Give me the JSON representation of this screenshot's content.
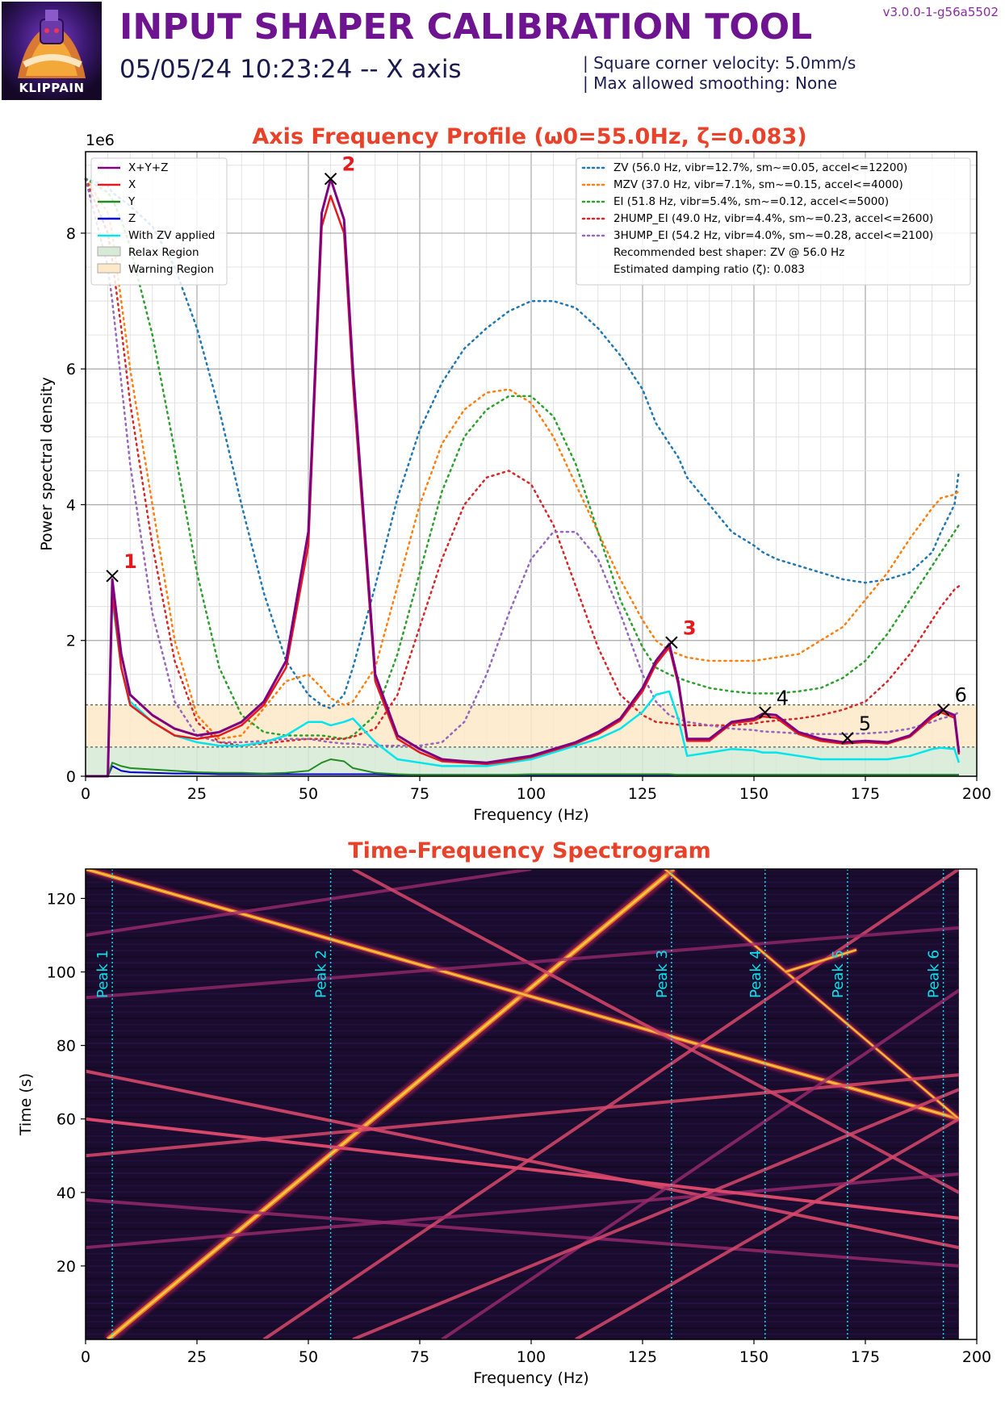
{
  "header": {
    "logo_text": "KLIPPAIN",
    "title": "INPUT SHAPER CALIBRATION TOOL",
    "subtitle": "05/05/24 10:23:24 -- X axis",
    "info_line1": "| Square corner velocity: 5.0mm/s",
    "info_line2": "| Max allowed smoothing: None",
    "version": "v3.0.0-1-g56a5502"
  },
  "colors": {
    "title": "#6f1490",
    "chart_title": "#e8432a",
    "sum": "#800080",
    "x": "#e41a1c",
    "y": "#228b22",
    "z": "#0000cd",
    "zv_applied": "#00e5ee",
    "relax": "#d6ead5",
    "warning": "#fde9c8"
  },
  "chart_data": [
    {
      "type": "line",
      "title": "Axis Frequency Profile (ω0=55.0Hz, ζ=0.083)",
      "xlabel": "Frequency (Hz)",
      "ylabel": "Power spectral density",
      "y_multiplier": "1e6",
      "xlim": [
        0,
        200
      ],
      "ylim": [
        0,
        9.2
      ],
      "xticks": [
        "0",
        "25",
        "50",
        "75",
        "100",
        "125",
        "150",
        "175",
        "200"
      ],
      "yticks": [
        "0",
        "2",
        "4",
        "6",
        "8"
      ],
      "grid": true,
      "x": [
        0,
        5,
        6,
        8,
        10,
        15,
        20,
        25,
        30,
        35,
        40,
        45,
        50,
        53,
        55,
        58,
        60,
        65,
        70,
        75,
        80,
        85,
        90,
        95,
        100,
        105,
        110,
        115,
        120,
        125,
        128,
        131,
        133,
        135,
        140,
        145,
        150,
        152,
        155,
        160,
        165,
        170,
        175,
        180,
        185,
        190,
        192,
        195,
        196
      ],
      "series": [
        {
          "name": "X+Y+Z",
          "color": "#800080",
          "style": "solid",
          "width": 3,
          "values": [
            0,
            0,
            2.9,
            1.8,
            1.2,
            0.9,
            0.7,
            0.6,
            0.65,
            0.8,
            1.1,
            1.7,
            3.6,
            8.3,
            8.8,
            8.2,
            6.0,
            1.5,
            0.6,
            0.4,
            0.25,
            0.22,
            0.2,
            0.25,
            0.3,
            0.4,
            0.5,
            0.65,
            0.85,
            1.3,
            1.7,
            1.95,
            1.4,
            0.55,
            0.55,
            0.8,
            0.85,
            0.92,
            0.9,
            0.65,
            0.55,
            0.5,
            0.52,
            0.5,
            0.6,
            0.9,
            0.98,
            0.9,
            0.35
          ]
        },
        {
          "name": "X",
          "color": "#e41a1c",
          "style": "solid",
          "width": 2.5,
          "values": [
            0,
            0,
            2.7,
            1.6,
            1.05,
            0.8,
            0.6,
            0.55,
            0.6,
            0.75,
            1.05,
            1.6,
            3.4,
            8.1,
            8.55,
            8.0,
            5.8,
            1.4,
            0.55,
            0.35,
            0.22,
            0.2,
            0.18,
            0.22,
            0.28,
            0.38,
            0.48,
            0.62,
            0.82,
            1.25,
            1.65,
            1.9,
            1.35,
            0.52,
            0.52,
            0.78,
            0.82,
            0.88,
            0.86,
            0.62,
            0.52,
            0.48,
            0.5,
            0.48,
            0.58,
            0.86,
            0.94,
            0.86,
            0.32
          ]
        },
        {
          "name": "Y",
          "color": "#228b22",
          "style": "solid",
          "width": 2,
          "values": [
            0,
            0,
            0.2,
            0.15,
            0.12,
            0.1,
            0.08,
            0.06,
            0.05,
            0.05,
            0.04,
            0.05,
            0.08,
            0.2,
            0.25,
            0.22,
            0.12,
            0.05,
            0.03,
            0.02,
            0.02,
            0.02,
            0.02,
            0.02,
            0.03,
            0.03,
            0.03,
            0.03,
            0.03,
            0.03,
            0.03,
            0.03,
            0.02,
            0.02,
            0.02,
            0.02,
            0.02,
            0.02,
            0.02,
            0.02,
            0.02,
            0.02,
            0.02,
            0.02,
            0.02,
            0.02,
            0.02,
            0.02,
            0.02
          ]
        },
        {
          "name": "Z",
          "color": "#0000cd",
          "style": "solid",
          "width": 2,
          "values": [
            0,
            0,
            0.15,
            0.08,
            0.06,
            0.05,
            0.04,
            0.04,
            0.03,
            0.03,
            0.03,
            0.03,
            0.03,
            0.03,
            0.03,
            0.03,
            0.03,
            0.03,
            0.02,
            0.02,
            0.02,
            0.02,
            0.02,
            0.02,
            0.02,
            0.02,
            0.02,
            0.02,
            0.02,
            0.02,
            0.02,
            0.02,
            0.02,
            0.02,
            0.02,
            0.02,
            0.02,
            0.02,
            0.02,
            0.02,
            0.02,
            0.02,
            0.02,
            0.02,
            0.02,
            0.02,
            0.02,
            0.02,
            0.02
          ]
        },
        {
          "name": "With ZV applied",
          "color": "#00e5ee",
          "style": "solid",
          "width": 2.5,
          "values": [
            0,
            0,
            2.6,
            1.6,
            1.1,
            0.8,
            0.6,
            0.5,
            0.45,
            0.45,
            0.5,
            0.6,
            0.8,
            0.8,
            0.75,
            0.8,
            0.85,
            0.5,
            0.25,
            0.2,
            0.15,
            0.15,
            0.15,
            0.2,
            0.25,
            0.35,
            0.45,
            0.55,
            0.7,
            0.95,
            1.2,
            1.25,
            0.85,
            0.3,
            0.35,
            0.4,
            0.38,
            0.35,
            0.35,
            0.3,
            0.25,
            0.25,
            0.25,
            0.25,
            0.3,
            0.4,
            0.42,
            0.4,
            0.2
          ]
        },
        {
          "name": "ZV (56.0 Hz, vibr=12.7%, sm~=0.05, accel<=12200)",
          "color": "#1f77b4",
          "style": "dotted",
          "width": 2.5,
          "values": [
            8.8,
            8.7,
            8.6,
            8.5,
            8.4,
            8.1,
            7.5,
            6.6,
            5.4,
            4.0,
            2.7,
            1.7,
            1.2,
            1.05,
            1.0,
            1.2,
            1.6,
            2.8,
            4.1,
            5.1,
            5.8,
            6.3,
            6.6,
            6.85,
            7.0,
            7.0,
            6.9,
            6.6,
            6.2,
            5.7,
            5.2,
            4.9,
            4.7,
            4.4,
            4.0,
            3.6,
            3.4,
            3.3,
            3.2,
            3.1,
            3.0,
            2.9,
            2.85,
            2.9,
            3.0,
            3.3,
            3.6,
            4.0,
            4.5
          ]
        },
        {
          "name": "MZV (37.0 Hz, vibr=7.1%, sm~=0.15, accel<=4000)",
          "color": "#ff7f0e",
          "style": "dotted",
          "width": 2.5,
          "values": [
            8.8,
            8.3,
            8.0,
            7.0,
            6.0,
            4.0,
            2.0,
            0.9,
            0.55,
            0.6,
            1.0,
            1.4,
            1.5,
            1.3,
            1.15,
            1.05,
            1.1,
            1.6,
            2.8,
            4.0,
            4.9,
            5.4,
            5.65,
            5.7,
            5.5,
            5.0,
            4.3,
            3.6,
            2.9,
            2.3,
            2.0,
            1.85,
            1.8,
            1.75,
            1.7,
            1.7,
            1.7,
            1.72,
            1.75,
            1.8,
            2.0,
            2.2,
            2.6,
            3.0,
            3.5,
            3.95,
            4.1,
            4.15,
            4.2
          ]
        },
        {
          "name": "EI (51.8 Hz, vibr=5.4%, sm~=0.12, accel<=5000)",
          "color": "#2ca02c",
          "style": "dotted",
          "width": 2.5,
          "values": [
            8.8,
            8.6,
            8.5,
            8.2,
            7.8,
            6.5,
            4.8,
            3.0,
            1.6,
            0.9,
            0.65,
            0.6,
            0.6,
            0.6,
            0.58,
            0.55,
            0.6,
            0.9,
            1.8,
            3.0,
            4.2,
            5.0,
            5.4,
            5.6,
            5.6,
            5.3,
            4.6,
            3.6,
            2.6,
            1.9,
            1.6,
            1.5,
            1.45,
            1.4,
            1.3,
            1.25,
            1.22,
            1.22,
            1.22,
            1.25,
            1.3,
            1.45,
            1.7,
            2.1,
            2.6,
            3.1,
            3.3,
            3.6,
            3.7
          ]
        },
        {
          "name": "2HUMP_EI (49.0 Hz, vibr=4.4%, sm~=0.23, accel<=2600)",
          "color": "#d62728",
          "style": "dotted",
          "width": 2.5,
          "values": [
            8.8,
            8.0,
            7.6,
            6.6,
            5.5,
            3.4,
            1.7,
            0.8,
            0.5,
            0.45,
            0.48,
            0.52,
            0.55,
            0.55,
            0.55,
            0.55,
            0.58,
            0.7,
            1.2,
            2.2,
            3.2,
            4.0,
            4.4,
            4.5,
            4.3,
            3.7,
            2.8,
            1.9,
            1.2,
            0.9,
            0.8,
            0.78,
            0.76,
            0.75,
            0.75,
            0.75,
            0.78,
            0.8,
            0.82,
            0.85,
            0.9,
            0.98,
            1.1,
            1.4,
            1.8,
            2.3,
            2.5,
            2.75,
            2.8
          ]
        },
        {
          "name": "3HUMP_EI (54.2 Hz, vibr=4.0%, sm~=0.28, accel<=2100)",
          "color": "#9467bd",
          "style": "dotted",
          "width": 2.5,
          "values": [
            8.8,
            7.5,
            7.0,
            5.8,
            4.6,
            2.4,
            1.1,
            0.6,
            0.5,
            0.5,
            0.52,
            0.55,
            0.55,
            0.52,
            0.5,
            0.48,
            0.48,
            0.45,
            0.45,
            0.45,
            0.5,
            0.8,
            1.5,
            2.4,
            3.2,
            3.6,
            3.6,
            3.2,
            2.4,
            1.5,
            1.1,
            0.9,
            0.85,
            0.8,
            0.75,
            0.7,
            0.68,
            0.66,
            0.65,
            0.63,
            0.62,
            0.62,
            0.63,
            0.65,
            0.7,
            0.8,
            0.85,
            0.9,
            0.95
          ]
        }
      ],
      "legend_left": [
        {
          "label": "X+Y+Z",
          "kind": "line",
          "color": "#800080"
        },
        {
          "label": "X",
          "kind": "line",
          "color": "#e41a1c"
        },
        {
          "label": "Y",
          "kind": "line",
          "color": "#228b22"
        },
        {
          "label": "Z",
          "kind": "line",
          "color": "#0000cd"
        },
        {
          "label": "With ZV applied",
          "kind": "line",
          "color": "#00e5ee"
        },
        {
          "label": "Relax Region",
          "kind": "patch",
          "color": "#d6ead5"
        },
        {
          "label": "Warning Region",
          "kind": "patch",
          "color": "#fde9c8"
        }
      ],
      "legend_left_placement": "upper-left",
      "legend_right": [
        {
          "label": "ZV (56.0 Hz, vibr=12.7%, sm~=0.05, accel<=12200)",
          "kind": "dotted",
          "color": "#1f77b4"
        },
        {
          "label": "MZV (37.0 Hz, vibr=7.1%, sm~=0.15, accel<=4000)",
          "kind": "dotted",
          "color": "#ff7f0e"
        },
        {
          "label": "EI (51.8 Hz, vibr=5.4%, sm~=0.12, accel<=5000)",
          "kind": "dotted",
          "color": "#2ca02c"
        },
        {
          "label": "2HUMP_EI (49.0 Hz, vibr=4.4%, sm~=0.23, accel<=2600)",
          "kind": "dotted",
          "color": "#d62728"
        },
        {
          "label": "3HUMP_EI (54.2 Hz, vibr=4.0%, sm~=0.28, accel<=2100)",
          "kind": "dotted",
          "color": "#9467bd"
        },
        {
          "label": "Recommended best shaper: ZV @ 56.0 Hz",
          "kind": "none",
          "color": ""
        },
        {
          "label": "Estimated damping ratio (ζ): 0.083",
          "kind": "none",
          "color": ""
        }
      ],
      "legend_right_placement": "upper-right",
      "regions": {
        "relax_max": 0.43,
        "warning_max": 1.05
      },
      "peaks": [
        {
          "label": "1",
          "x": 6,
          "y": 2.95,
          "major": true
        },
        {
          "label": "2",
          "x": 55,
          "y": 8.8,
          "major": true
        },
        {
          "label": "3",
          "x": 131.5,
          "y": 1.97,
          "major": true
        },
        {
          "label": "4",
          "x": 152.5,
          "y": 0.94,
          "major": false
        },
        {
          "label": "5",
          "x": 171,
          "y": 0.56,
          "major": false
        },
        {
          "label": "6",
          "x": 192.5,
          "y": 0.98,
          "major": false
        }
      ]
    },
    {
      "type": "heatmap",
      "title": "Time-Frequency Spectrogram",
      "xlabel": "Frequency (Hz)",
      "ylabel": "Time (s)",
      "xlim": [
        0,
        200
      ],
      "ylim": [
        0,
        128
      ],
      "data_xmax": 196,
      "xticks": [
        "0",
        "25",
        "50",
        "75",
        "100",
        "125",
        "150",
        "175",
        "200"
      ],
      "yticks": [
        "20",
        "40",
        "60",
        "80",
        "100",
        "120"
      ],
      "colormap": "inferno",
      "peak_markers": [
        {
          "label": "Peak 1",
          "x": 6
        },
        {
          "label": "Peak 2",
          "x": 55
        },
        {
          "label": "Peak 3",
          "x": 131.5
        },
        {
          "label": "Peak 4",
          "x": 152.5
        },
        {
          "label": "Peak 5",
          "x": 171
        },
        {
          "label": "Peak 6",
          "x": 192.5
        }
      ],
      "traces": [
        {
          "f0": 5,
          "t0": 0,
          "f1": 132,
          "t1": 128,
          "strength": 1.0
        },
        {
          "f0": 0,
          "t0": 128,
          "f1": 196,
          "t1": 60,
          "strength": 0.75
        },
        {
          "f0": 130,
          "t0": 128,
          "f1": 196,
          "t1": 60,
          "strength": 0.55
        },
        {
          "f0": 0,
          "t0": 73,
          "f1": 196,
          "t1": 25,
          "strength": 0.35
        },
        {
          "f0": 0,
          "t0": 50,
          "f1": 196,
          "t1": 72,
          "strength": 0.3
        },
        {
          "f0": 0,
          "t0": 38,
          "f1": 196,
          "t1": 20,
          "strength": 0.25
        },
        {
          "f0": 40,
          "t0": 0,
          "f1": 196,
          "t1": 128,
          "strength": 0.3
        },
        {
          "f0": 80,
          "t0": 0,
          "f1": 196,
          "t1": 95,
          "strength": 0.25
        },
        {
          "f0": 110,
          "t0": 0,
          "f1": 196,
          "t1": 60,
          "strength": 0.3
        },
        {
          "f0": 0,
          "t0": 110,
          "f1": 100,
          "t1": 128,
          "strength": 0.25
        },
        {
          "f0": 60,
          "t0": 128,
          "f1": 196,
          "t1": 40,
          "strength": 0.3
        },
        {
          "f0": 0,
          "t0": 25,
          "f1": 196,
          "t1": 45,
          "strength": 0.25
        },
        {
          "f0": 157,
          "t0": 100,
          "f1": 173,
          "t1": 106,
          "strength": 0.6
        },
        {
          "f0": 0,
          "t0": 60,
          "f1": 196,
          "t1": 33,
          "strength": 0.45
        },
        {
          "f0": 60,
          "t0": 0,
          "f1": 196,
          "t1": 68,
          "strength": 0.3
        },
        {
          "f0": 0,
          "t0": 93,
          "f1": 196,
          "t1": 112,
          "strength": 0.2
        }
      ]
    }
  ]
}
